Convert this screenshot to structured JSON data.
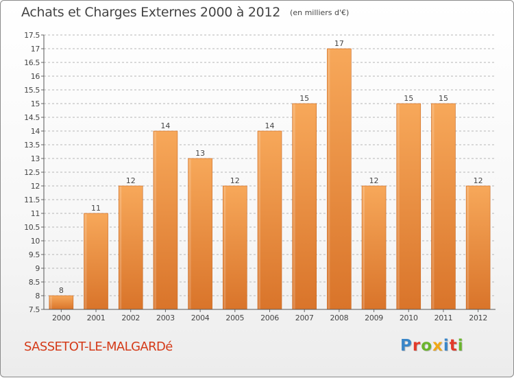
{
  "header": {
    "title": "Achats et Charges Externes 2000 à 2012",
    "unit": "(en milliers d'€)"
  },
  "footer": {
    "commune": "SASSETOT-LE-MALGARDé",
    "logo_letters": [
      "P",
      "r",
      "o",
      "x",
      "i",
      "t",
      "i"
    ],
    "logo_colors": [
      "#3a86c8",
      "#e23a2a",
      "#6ab42d",
      "#f0a818",
      "#3a86c8",
      "#e23a2a",
      "#6ab42d"
    ]
  },
  "chart_data": {
    "type": "bar",
    "categories": [
      "2000",
      "2001",
      "2002",
      "2003",
      "2004",
      "2005",
      "2006",
      "2007",
      "2008",
      "2009",
      "2010",
      "2011",
      "2012"
    ],
    "values": [
      8,
      11,
      12,
      14,
      13,
      12,
      14,
      15,
      17,
      12,
      15,
      15,
      12
    ],
    "data_labels": [
      "8",
      "11",
      "12",
      "14",
      "13",
      "12",
      "14",
      "15",
      "17",
      "12",
      "15",
      "15",
      "12"
    ],
    "y_ticks": [
      "7.5",
      "8",
      "8.5",
      "9",
      "9.5",
      "10",
      "10.5",
      "11",
      "11.5",
      "12",
      "12.5",
      "13",
      "13.5",
      "14",
      "14.5",
      "15",
      "15.5",
      "16",
      "16.5",
      "17",
      "17.5"
    ],
    "ylim": [
      7.5,
      17.5
    ],
    "grid": "horizontal dashed",
    "bar_color_top": "#f7a85a",
    "bar_color_bottom": "#d9742a"
  }
}
